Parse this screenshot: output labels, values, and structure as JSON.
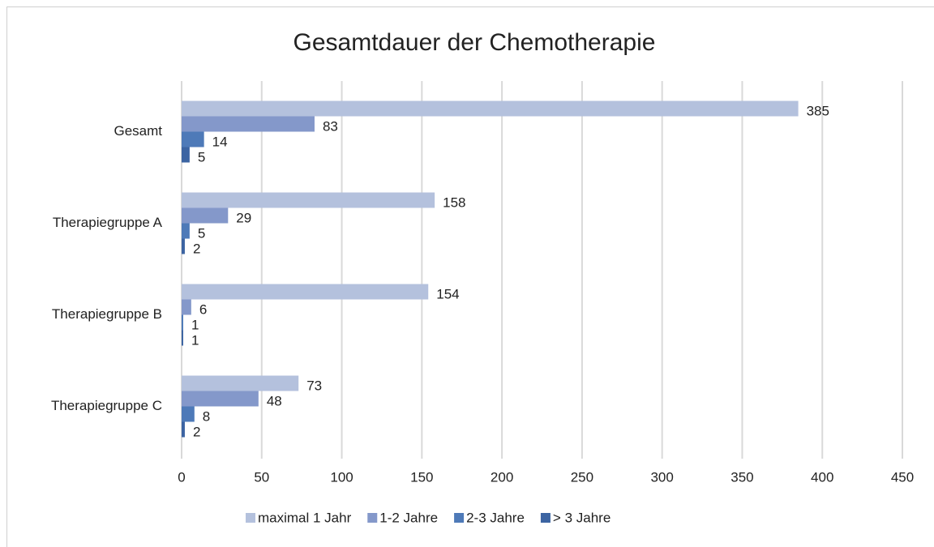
{
  "chart_data": {
    "type": "bar",
    "orientation": "horizontal",
    "title": "Gesamtdauer der Chemotherapie",
    "categories": [
      "Gesamt",
      "Therapiegruppe A",
      "Therapiegruppe B",
      "Therapiegruppe C"
    ],
    "series": [
      {
        "name": "maximal 1 Jahr",
        "color": "#b4c1dd",
        "values": [
          385,
          158,
          154,
          73
        ]
      },
      {
        "name": "1-2 Jahre",
        "color": "#8498ca",
        "values": [
          83,
          29,
          6,
          48
        ]
      },
      {
        "name": "2-3 Jahre",
        "color": "#4e7ab8",
        "values": [
          14,
          5,
          1,
          8
        ]
      },
      {
        "name": "> 3 Jahre",
        "color": "#3c64a2",
        "values": [
          5,
          2,
          1,
          2
        ]
      }
    ],
    "xlim": [
      0,
      450
    ],
    "xticks": [
      0,
      50,
      100,
      150,
      200,
      250,
      300,
      350,
      400,
      450
    ],
    "grid": true,
    "legend": "bottom"
  }
}
